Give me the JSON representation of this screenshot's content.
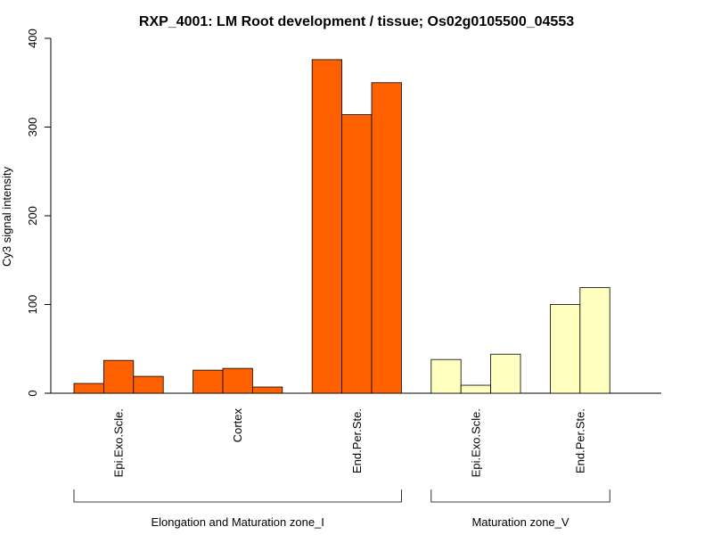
{
  "chart_data": {
    "type": "bar",
    "title": "RXP_4001: LM Root development / tissue; Os02g0105500_04553",
    "xlabel": "",
    "ylabel": "Cy3 signal intensity",
    "ylim": [
      0,
      400
    ],
    "yticks": [
      0,
      100,
      200,
      300,
      400
    ],
    "grid": false,
    "groups": [
      {
        "label": "Elongation and Maturation zone_I",
        "color": "#FF6100",
        "categories": [
          {
            "label": "Epi.Exo.Scle.",
            "values": [
              11,
              37,
              19
            ]
          },
          {
            "label": "Cortex",
            "values": [
              26,
              28,
              7
            ]
          },
          {
            "label": "End.Per.Ste.",
            "values": [
              376,
              314,
              350
            ]
          }
        ]
      },
      {
        "label": "Maturation zone_V",
        "color": "#FFFFC0",
        "categories": [
          {
            "label": "Epi.Exo.Scle.",
            "values": [
              38,
              9,
              44
            ]
          },
          {
            "label": "End.Per.Ste.",
            "values": [
              100,
              119
            ]
          }
        ]
      }
    ]
  }
}
